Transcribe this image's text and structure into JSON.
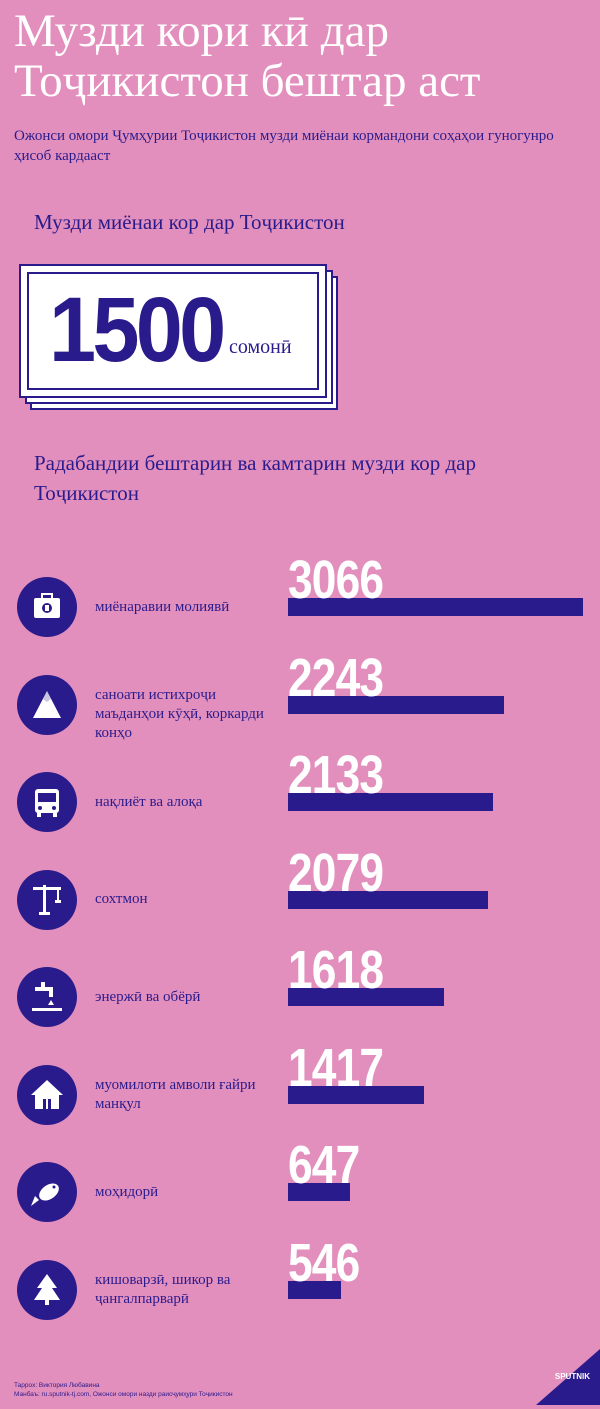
{
  "header": {
    "title": "Музди кори кӣ дар Тоҷикистон бештар аст",
    "subtitle": "Ожонси омори Ҷумҳурии Тоҷикистон музди миёнаи кормандони соҳаҳои гуногунро ҳисоб кардааст"
  },
  "average": {
    "heading": "Музди миёнаи кор дар Тоҷикистон",
    "value": "1500",
    "unit": "сомонӣ"
  },
  "ranking": {
    "heading": "Радабандии бештарин ва камтарин музди кор дар Тоҷикистон"
  },
  "chart_data": {
    "type": "bar",
    "orientation": "horizontal",
    "title": "Радабандии бештарин ва камтарин музди кор дар Тоҷикистон",
    "categories": [
      "миёнаравии молиявӣ",
      "саноати истихроҷи маъданҳои кӯҳӣ, коркарди конҳо",
      "нақлиёт ва алоқа",
      "сохтмон",
      "энержӣ ва обёрӣ",
      "муомилоти  амволи ғайри манқул",
      "моҳидорӣ",
      "кишоварзӣ, шикор ва ҷангалпарварӣ"
    ],
    "values": [
      3066,
      2243,
      2133,
      2079,
      1618,
      1417,
      647,
      546
    ],
    "icons": [
      "briefcase-money-icon",
      "mountain-icon",
      "bus-icon",
      "crane-icon",
      "water-tap-icon",
      "house-icon",
      "fish-icon",
      "tree-icon"
    ],
    "xlim": [
      0,
      3066
    ],
    "colors": {
      "bar": "#2a1b8c",
      "value": "#ffffff",
      "background": "#e38fbd"
    }
  },
  "footer": {
    "author": "Таррох: Виктория Любавина",
    "source": "Манбаъ: ru.sputnik-tj.com, Ожонси омори назди раисҷумҳури Тоҷикистон",
    "logo": "SPUTNIK"
  }
}
